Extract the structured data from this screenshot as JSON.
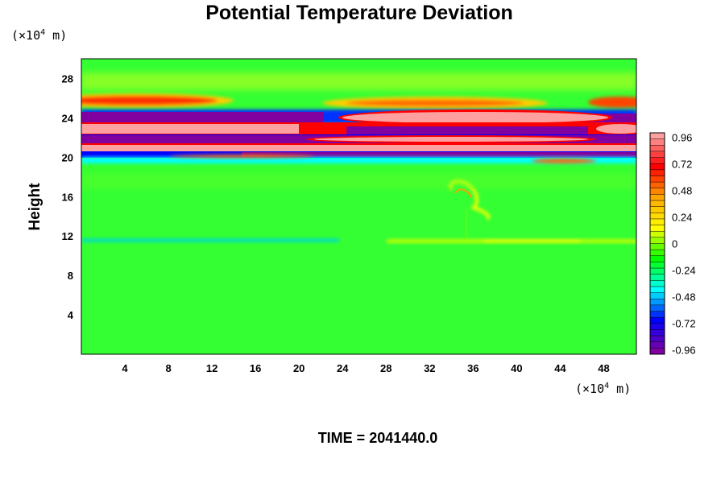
{
  "chart_data": {
    "type": "heatmap",
    "title": "Potential Temperature Deviation",
    "ylabel": "Height",
    "x_unit_prefix": "(×10",
    "x_unit_exp": "4",
    "x_unit_suffix": " m)",
    "y_unit_prefix": "(×10",
    "y_unit_exp": "4",
    "y_unit_suffix": " m)",
    "xlim": [
      0,
      51
    ],
    "ylim": [
      0,
      30
    ],
    "x_ticks": [
      4,
      8,
      12,
      16,
      20,
      24,
      28,
      32,
      36,
      40,
      44,
      48
    ],
    "y_ticks": [
      4,
      8,
      12,
      16,
      20,
      24,
      28
    ],
    "colorbar": {
      "min": -1.0,
      "max": 1.0,
      "levels": 36,
      "ticks": [
        "0.96",
        "0.72",
        "0.48",
        "0.24",
        "0",
        "-0.24",
        "-0.48",
        "-0.72",
        "-0.96"
      ],
      "tick_values": [
        0.96,
        0.72,
        0.48,
        0.24,
        0,
        -0.24,
        -0.48,
        -0.72,
        -0.96
      ],
      "colors": [
        "#ffa0a0",
        "#ff0000",
        "#ffa500",
        "#ffff00",
        "#00ff00",
        "#00ffff",
        "#0000ff",
        "#8000a0"
      ]
    },
    "bands": [
      {
        "name": "upper-red-band",
        "y": 25.5,
        "value": 0.7
      },
      {
        "name": "upper-purple-band",
        "y": 24.0,
        "value": -0.96
      },
      {
        "name": "pink-band-1",
        "y": 22.8,
        "value": 0.96
      },
      {
        "name": "purple-band-2",
        "y": 21.7,
        "value": -0.96
      },
      {
        "name": "pink-band-2",
        "y": 20.9,
        "value": 0.96
      },
      {
        "name": "purple-band-3",
        "y": 20.1,
        "value": -0.96
      },
      {
        "name": "cyan-line",
        "y": 11.4,
        "value": -0.3
      },
      {
        "name": "yellow-line",
        "y": 11.4,
        "value": 0.25
      }
    ],
    "footer": "TIME = 2041440.0"
  }
}
